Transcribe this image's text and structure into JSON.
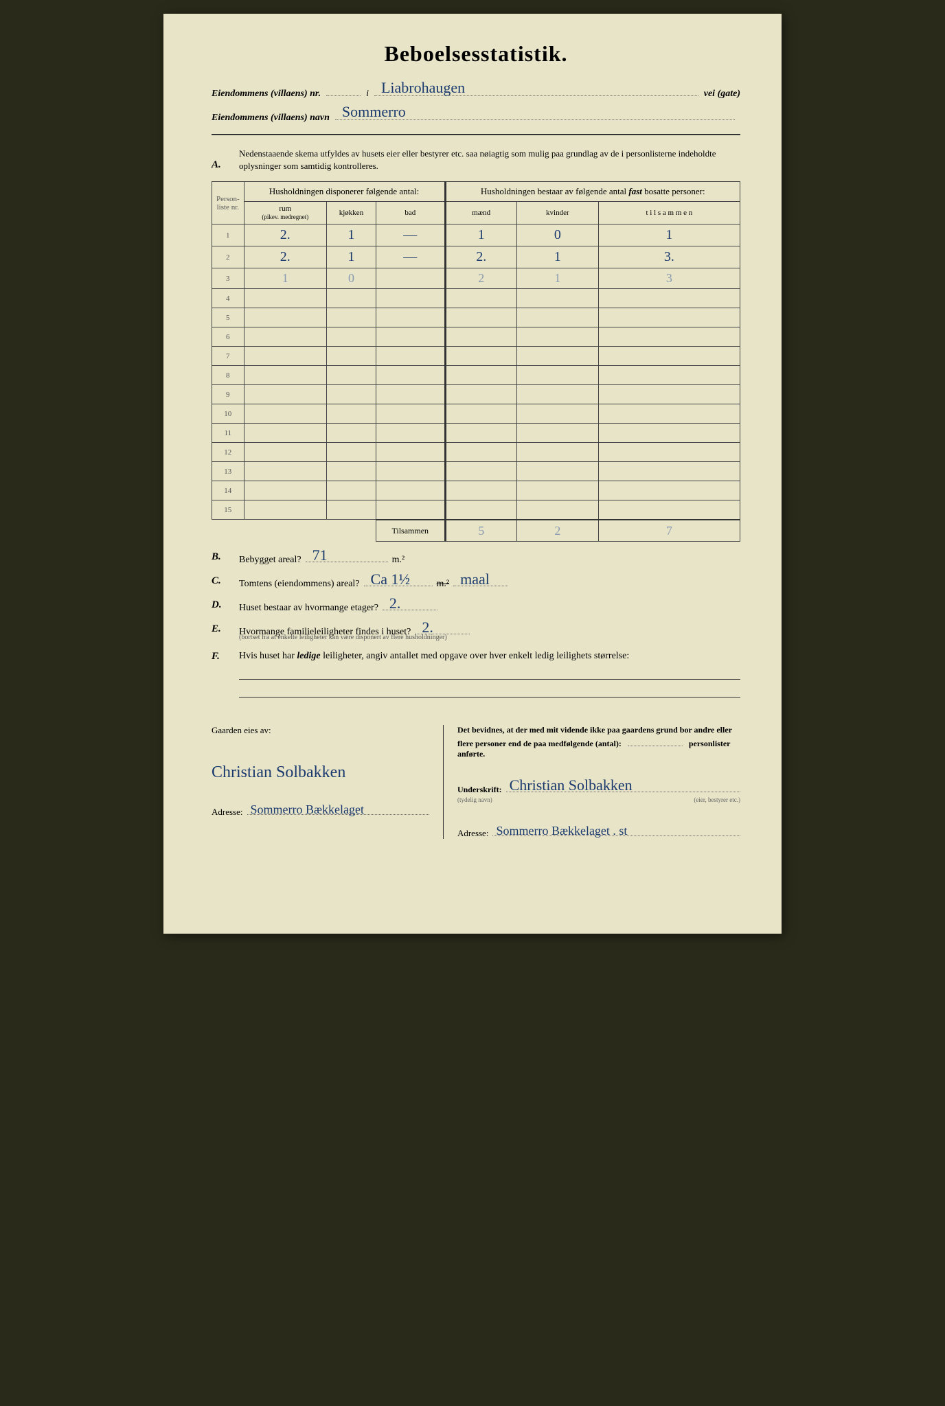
{
  "title": "Beboelsesstatistik.",
  "header": {
    "nr_label": "Eiendommens (villaens) nr.",
    "nr_i": "i",
    "nr_value": "Liabrohaugen",
    "nr_end": "vei (gate)",
    "navn_label": "Eiendommens (villaens) navn",
    "navn_value": "Sommerro"
  },
  "sectionA": {
    "letter": "A.",
    "text": "Nedenstaaende skema utfyldes av husets eier eller bestyrer etc. saa nøiagtig som mulig paa grundlag av de i personlisterne indeholdte oplysninger som samtidig kontrolleres."
  },
  "table": {
    "col_personliste": "Person-liste nr.",
    "group1": "Husholdningen disponerer følgende antal:",
    "group2": "Husholdningen bestaar av følgende antal fast bosatte personer:",
    "sub": {
      "rum": "rum",
      "rum_note": "(pikev. medregnet)",
      "kjokken": "kjøkken",
      "bad": "bad",
      "maend": "mænd",
      "kvinder": "kvinder",
      "tilsammen": "t i l s a m m e n"
    },
    "rows": [
      {
        "n": "1",
        "rum": "2.",
        "kj": "1",
        "bad": "—",
        "m": "1",
        "k": "0",
        "t": "1"
      },
      {
        "n": "2",
        "rum": "2.",
        "kj": "1",
        "bad": "—",
        "m": "2.",
        "k": "1",
        "t": "3."
      },
      {
        "n": "3",
        "rum": "1",
        "kj": "0",
        "bad": "",
        "m": "2",
        "k": "1",
        "t": "3",
        "faint": true
      },
      {
        "n": "4"
      },
      {
        "n": "5"
      },
      {
        "n": "6"
      },
      {
        "n": "7"
      },
      {
        "n": "8"
      },
      {
        "n": "9"
      },
      {
        "n": "10"
      },
      {
        "n": "11"
      },
      {
        "n": "12"
      },
      {
        "n": "13"
      },
      {
        "n": "14"
      },
      {
        "n": "15"
      }
    ],
    "tilsammen_label": "Tilsammen",
    "totals": {
      "m": "5",
      "k": "2",
      "t": "7"
    }
  },
  "sectionB": {
    "letter": "B.",
    "label": "Bebygget areal?",
    "value": "71",
    "unit": "m.²"
  },
  "sectionC": {
    "letter": "C.",
    "label": "Tomtens (eiendommens) areal?",
    "value": "Ca 1½",
    "unit": "m.²",
    "extra": "maal"
  },
  "sectionD": {
    "letter": "D.",
    "label": "Huset bestaar av hvormange etager?",
    "value": "2."
  },
  "sectionE": {
    "letter": "E.",
    "label": "Hvormange familieleiligheter findes i huset?",
    "value": "2.",
    "note": "(bortset fra at enkelte leiligheter kan være disponert av flere husholdninger)"
  },
  "sectionF": {
    "letter": "F.",
    "label": "Hvis huset har ledige leiligheter, angiv antallet med opgave over hver enkelt ledig leilighets størrelse:"
  },
  "bottom": {
    "owner_label": "Gaarden eies av:",
    "owner_name": "Christian Solbakken",
    "attest": "Det bevidnes, at der med mit vidende ikke paa gaardens grund bor andre eller flere personer end de paa medfølgende (antal):",
    "attest_end": "personlister anførte.",
    "sig_label": "Underskrift:",
    "sig_value": "Christian Solbakken",
    "sig_note": "(tydelig navn)",
    "sig_note2": "(eier, bestyrer etc.)",
    "addr_label": "Adresse:",
    "addr_left": "Sommerro Bækkelaget",
    "addr_right": "Sommerro Bækkelaget . st"
  }
}
